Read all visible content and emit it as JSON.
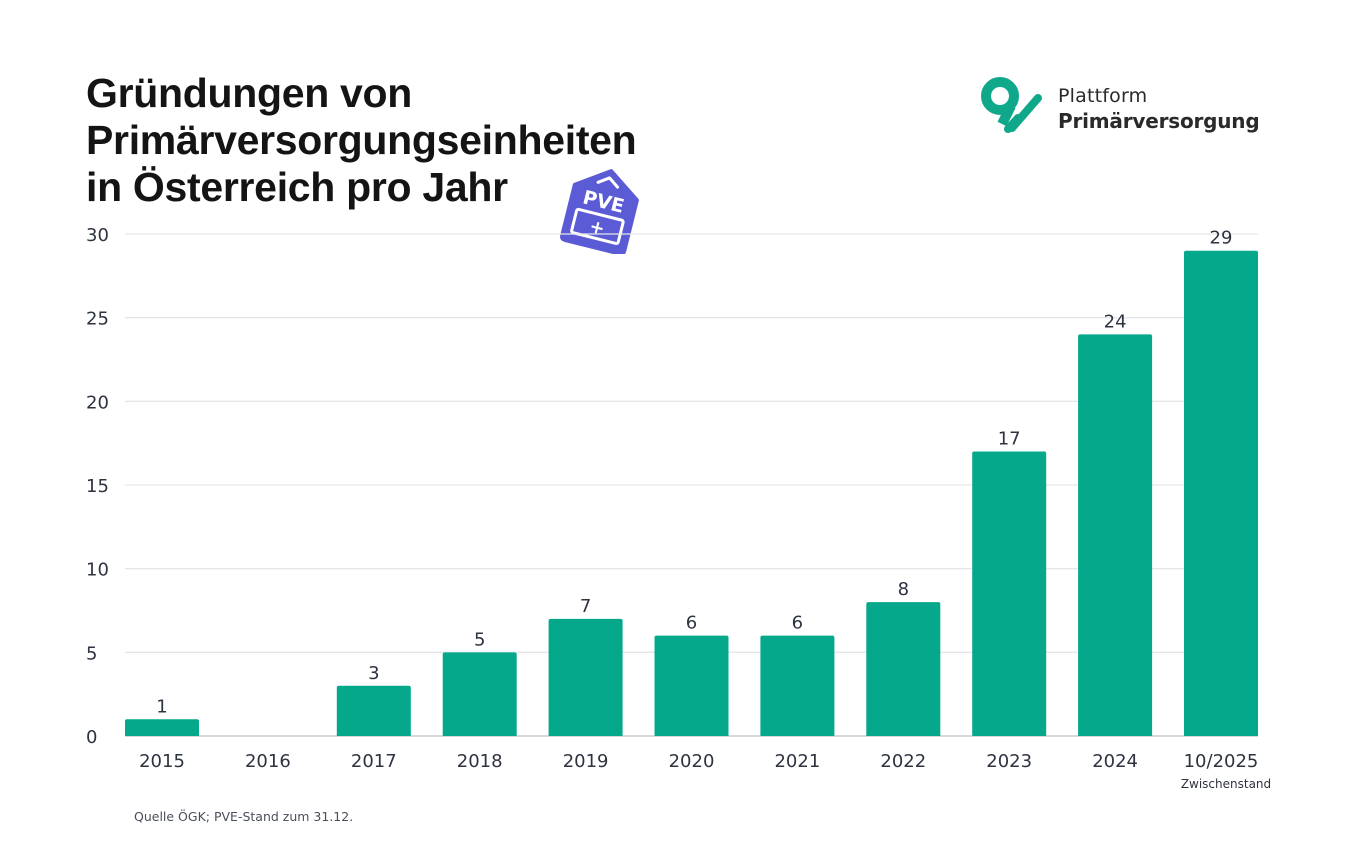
{
  "header": {
    "title_lines": [
      "Gründungen von",
      "Primärversorgungseinheiten",
      "in Österreich ",
      "pro Jahr"
    ],
    "badge": {
      "icon": "pve-house-icon",
      "text": "PVE",
      "symbol": "+",
      "color": "#5b5bd6"
    }
  },
  "brand": {
    "icon": "plattform-logo-icon",
    "line1": "Plattform",
    "line2": "Primärversorgung",
    "color": "#0fa88a"
  },
  "chart_data": {
    "type": "bar",
    "title": "Gründungen von Primärversorgungseinheiten in Österreich pro Jahr",
    "xlabel": "",
    "ylabel": "",
    "categories": [
      "2015",
      "2016",
      "2017",
      "2018",
      "2019",
      "2020",
      "2021",
      "2022",
      "2023",
      "2024",
      "10/2025"
    ],
    "category_sublabels": {
      "10/2025": "Zwischenstand"
    },
    "values": [
      1,
      0,
      3,
      5,
      7,
      6,
      6,
      8,
      17,
      24,
      29
    ],
    "data_labels": [
      "1",
      "",
      "3",
      "5",
      "7",
      "6",
      "6",
      "8",
      "17",
      "24",
      "29"
    ],
    "ylim": [
      0,
      30
    ],
    "yticks": [
      0,
      5,
      10,
      15,
      20,
      25,
      30
    ],
    "grid": true,
    "legend": "none",
    "bar_color": "#05a88b",
    "grid_color": "#e4e6ea"
  },
  "footnote": "Quelle ÖGK; PVE-Stand zum 31.12."
}
